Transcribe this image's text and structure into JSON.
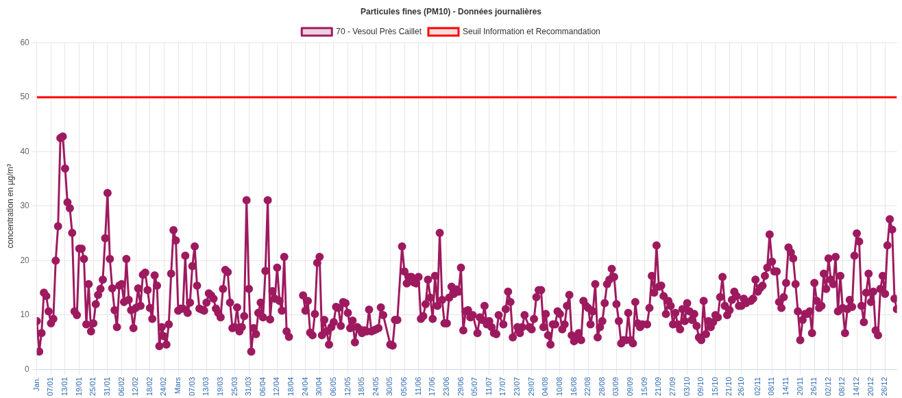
{
  "chart_data": {
    "type": "line",
    "title": "Particules fines (PM10) - Données journalières",
    "ylabel": "concentration en µg/m³",
    "xlim": [
      "--01-01",
      "--12-31"
    ],
    "ylim": [
      0,
      60
    ],
    "yticks": [
      0,
      10,
      20,
      30,
      40,
      50,
      60
    ],
    "xticks": [
      {
        "value": "--01-01",
        "label": "Jan."
      },
      {
        "value": "--01-07",
        "label": "07/01"
      },
      {
        "value": "--01-13",
        "label": "13/01"
      },
      {
        "value": "--01-19",
        "label": "19/01"
      },
      {
        "value": "--01-25",
        "label": "25/01"
      },
      {
        "value": "--01-31",
        "label": "31/01"
      },
      {
        "value": "--02-06",
        "label": "06/02"
      },
      {
        "value": "--02-12",
        "label": "12/02"
      },
      {
        "value": "--02-18",
        "label": "18/02"
      },
      {
        "value": "--02-24",
        "label": "24/02"
      },
      {
        "value": "--03-01",
        "label": "Mars"
      },
      {
        "value": "--03-07",
        "label": "07/03"
      },
      {
        "value": "--03-13",
        "label": "13/03"
      },
      {
        "value": "--03-19",
        "label": "19/03"
      },
      {
        "value": "--03-25",
        "label": "25/03"
      },
      {
        "value": "--03-31",
        "label": "31/03"
      },
      {
        "value": "--04-06",
        "label": "06/04"
      },
      {
        "value": "--04-12",
        "label": "12/04"
      },
      {
        "value": "--04-18",
        "label": "18/04"
      },
      {
        "value": "--04-24",
        "label": "24/04"
      },
      {
        "value": "--04-30",
        "label": "30/04"
      },
      {
        "value": "--05-06",
        "label": "06/05"
      },
      {
        "value": "--05-12",
        "label": "12/05"
      },
      {
        "value": "--05-18",
        "label": "18/05"
      },
      {
        "value": "--05-24",
        "label": "24/05"
      },
      {
        "value": "--05-30",
        "label": "30/05"
      },
      {
        "value": "--06-05",
        "label": "05/06"
      },
      {
        "value": "--06-11",
        "label": "11/06"
      },
      {
        "value": "--06-17",
        "label": "17/06"
      },
      {
        "value": "--06-23",
        "label": "23/06"
      },
      {
        "value": "--06-29",
        "label": "29/06"
      },
      {
        "value": "--07-05",
        "label": "05/07"
      },
      {
        "value": "--07-11",
        "label": "11/07"
      },
      {
        "value": "--07-17",
        "label": "17/07"
      },
      {
        "value": "--07-23",
        "label": "23/07"
      },
      {
        "value": "--07-29",
        "label": "29/07"
      },
      {
        "value": "--08-04",
        "label": "04/08"
      },
      {
        "value": "--08-10",
        "label": "10/08"
      },
      {
        "value": "--08-16",
        "label": "16/08"
      },
      {
        "value": "--08-22",
        "label": "22/08"
      },
      {
        "value": "--08-28",
        "label": "28/08"
      },
      {
        "value": "--09-03",
        "label": "03/09"
      },
      {
        "value": "--09-09",
        "label": "09/09"
      },
      {
        "value": "--09-15",
        "label": "15/09"
      },
      {
        "value": "--09-21",
        "label": "21/09"
      },
      {
        "value": "--09-27",
        "label": "27/09"
      },
      {
        "value": "--10-03",
        "label": "03/10"
      },
      {
        "value": "--10-09",
        "label": "09/10"
      },
      {
        "value": "--10-15",
        "label": "15/10"
      },
      {
        "value": "--10-21",
        "label": "21/10"
      },
      {
        "value": "--10-26",
        "label": "26/10"
      },
      {
        "value": "--11-02",
        "label": "02/11"
      },
      {
        "value": "--11-08",
        "label": "08/11"
      },
      {
        "value": "--11-14",
        "label": "14/11"
      },
      {
        "value": "--11-20",
        "label": "20/11"
      },
      {
        "value": "--11-26",
        "label": "26/11"
      },
      {
        "value": "--12-02",
        "label": "02/12"
      },
      {
        "value": "--12-08",
        "label": "08/12"
      },
      {
        "value": "--12-14",
        "label": "14/12"
      },
      {
        "value": "--12-20",
        "label": "20/12"
      },
      {
        "value": "--12-26",
        "label": "26/12"
      }
    ],
    "grid": true,
    "legend": "top",
    "marker": "circle",
    "line_style": "solid",
    "ref_lines": [
      {
        "axis": "y",
        "value": 50,
        "label": "Seuil Information et Recommandation",
        "color": "#ff0000"
      }
    ],
    "series": [
      {
        "name": "70 - Vesoul Près Caillet",
        "color": "#9e1a5f",
        "x": [
          "--01-01",
          "--01-02",
          "--01-03",
          "--01-04",
          "--01-05",
          "--01-06",
          "--01-07",
          "--01-08",
          "--01-09",
          "--01-10",
          "--01-11",
          "--01-12",
          "--01-13",
          "--01-14",
          "--01-15",
          "--01-16",
          "--01-17",
          "--01-18",
          "--01-19",
          "--01-20",
          "--01-21",
          "--01-22",
          "--01-23",
          "--01-24",
          "--01-25",
          "--01-26",
          "--01-27",
          "--01-28",
          "--01-29",
          "--01-30",
          "--01-31",
          "--02-01",
          "--02-02",
          "--02-03",
          "--02-04",
          "--02-05",
          "--02-06",
          "--02-07",
          "--02-08",
          "--02-09",
          "--02-10",
          "--02-11",
          "--02-12",
          "--02-13",
          "--02-14",
          "--02-15",
          "--02-16",
          "--02-17",
          "--02-18",
          "--02-19",
          "--02-20",
          "--02-21",
          "--02-22",
          "--02-23",
          "--02-24",
          "--02-25",
          "--02-26",
          "--02-27",
          "--02-28",
          "--02-29",
          "--03-01",
          "--03-02",
          "--03-03",
          "--03-04",
          "--03-05",
          "--03-06",
          "--03-07",
          "--03-08",
          "--03-09",
          "--03-10",
          "--03-11",
          "--03-12",
          "--03-13",
          "--03-14",
          "--03-15",
          "--03-16",
          "--03-17",
          "--03-18",
          "--03-19",
          "--03-20",
          "--03-21",
          "--03-22",
          "--03-23",
          "--03-24",
          "--03-25",
          "--03-26",
          "--03-27",
          "--03-28",
          "--03-29",
          "--03-30",
          "--03-31",
          "--04-01",
          "--04-02",
          "--04-03",
          "--04-04",
          "--04-05",
          "--04-06",
          "--04-07",
          "--04-08",
          "--04-09",
          "--04-10",
          "--04-11",
          "--04-12",
          "--04-13",
          "--04-14",
          "--04-15",
          "--04-16",
          "--04-17",
          "--04-18",
          "--04-23",
          "--04-24",
          "--04-25",
          "--04-26",
          "--04-27",
          "--04-28",
          "--04-29",
          "--04-30",
          "--05-01",
          "--05-02",
          "--05-03",
          "--05-04",
          "--05-05",
          "--05-06",
          "--05-07",
          "--05-08",
          "--05-09",
          "--05-10",
          "--05-11",
          "--05-12",
          "--05-13",
          "--05-14",
          "--05-15",
          "--05-16",
          "--05-17",
          "--05-18",
          "--05-19",
          "--05-20",
          "--05-21",
          "--05-22",
          "--05-23",
          "--05-24",
          "--05-25",
          "--05-26",
          "--05-27",
          "--05-30",
          "--05-31",
          "--06-01",
          "--06-02",
          "--06-04",
          "--06-05",
          "--06-06",
          "--06-07",
          "--06-08",
          "--06-09",
          "--06-10",
          "--06-11",
          "--06-12",
          "--06-13",
          "--06-14",
          "--06-15",
          "--06-16",
          "--06-17",
          "--06-18",
          "--06-19",
          "--06-20",
          "--06-21",
          "--06-22",
          "--06-23",
          "--06-24",
          "--06-25",
          "--06-26",
          "--06-27",
          "--06-28",
          "--06-29",
          "--06-30",
          "--07-01",
          "--07-02",
          "--07-03",
          "--07-04",
          "--07-06",
          "--07-07",
          "--07-08",
          "--07-09",
          "--07-10",
          "--07-11",
          "--07-12",
          "--07-13",
          "--07-14",
          "--07-15",
          "--07-17",
          "--07-18",
          "--07-19",
          "--07-20",
          "--07-21",
          "--07-23",
          "--07-24",
          "--07-25",
          "--07-26",
          "--07-28",
          "--07-29",
          "--07-30",
          "--07-31",
          "--08-01",
          "--08-02",
          "--08-03",
          "--08-04",
          "--08-05",
          "--08-06",
          "--08-07",
          "--08-08",
          "--08-09",
          "--08-10",
          "--08-11",
          "--08-12",
          "--08-13",
          "--08-14",
          "--08-15",
          "--08-16",
          "--08-17",
          "--08-18",
          "--08-19",
          "--08-20",
          "--08-21",
          "--08-22",
          "--08-23",
          "--08-24",
          "--08-25",
          "--08-26",
          "--08-27",
          "--08-28",
          "--08-29",
          "--08-30",
          "--08-31",
          "--09-01",
          "--09-02",
          "--09-03",
          "--09-04",
          "--09-05",
          "--09-06",
          "--09-07",
          "--09-08",
          "--09-09",
          "--09-10",
          "--09-11",
          "--09-12",
          "--09-13",
          "--09-14",
          "--09-16",
          "--09-17",
          "--09-18",
          "--09-19",
          "--09-20",
          "--09-21",
          "--09-22",
          "--09-23",
          "--09-24",
          "--09-25",
          "--09-26",
          "--09-27",
          "--09-28",
          "--09-29",
          "--09-30",
          "--10-01",
          "--10-02",
          "--10-03",
          "--10-04",
          "--10-05",
          "--10-06",
          "--10-07",
          "--10-08",
          "--10-09",
          "--10-10",
          "--10-11",
          "--10-12",
          "--10-13",
          "--10-14",
          "--10-15",
          "--10-16",
          "--10-17",
          "--10-18",
          "--10-19",
          "--10-20",
          "--10-21",
          "--10-22",
          "--10-23",
          "--10-24",
          "--10-25",
          "--10-26",
          "--10-27",
          "--10-28",
          "--10-30",
          "--10-31",
          "--11-01",
          "--11-02",
          "--11-03",
          "--11-04",
          "--11-05",
          "--11-06",
          "--11-07",
          "--11-08",
          "--11-09",
          "--11-10",
          "--11-11",
          "--11-12",
          "--11-13",
          "--11-14",
          "--11-15",
          "--11-16",
          "--11-17",
          "--11-18",
          "--11-19",
          "--11-20",
          "--11-21",
          "--11-22",
          "--11-23",
          "--11-24",
          "--11-25",
          "--11-26",
          "--11-27",
          "--11-28",
          "--11-29",
          "--11-30",
          "--12-01",
          "--12-02",
          "--12-03",
          "--12-04",
          "--12-05",
          "--12-06",
          "--12-07",
          "--12-08",
          "--12-09",
          "--12-10",
          "--12-11",
          "--12-12",
          "--12-13",
          "--12-14",
          "--12-15",
          "--12-16",
          "--12-17",
          "--12-18",
          "--12-19",
          "--12-20",
          "--12-21",
          "--12-22",
          "--12-23",
          "--12-24",
          "--12-25",
          "--12-26",
          "--12-27",
          "--12-28",
          "--12-29",
          "--12-30",
          "--12-31"
        ],
        "values": [
          8.9,
          3.3,
          6.7,
          14.1,
          13.5,
          10.7,
          8.5,
          9.3,
          20,
          26.3,
          42.5,
          42.8,
          36.9,
          30.7,
          29.6,
          25.1,
          10.7,
          10,
          22.2,
          22.2,
          20.3,
          8.3,
          15.7,
          7,
          8.5,
          12,
          13.7,
          14.8,
          16.5,
          24.1,
          32.4,
          20.3,
          14.9,
          10.9,
          7.8,
          15.4,
          15.7,
          12.4,
          20.3,
          12.8,
          10.9,
          7.6,
          11.3,
          14.9,
          11.7,
          17.4,
          17.8,
          14.6,
          11.3,
          9.3,
          17.3,
          15.4,
          4.3,
          7.8,
          6.1,
          4.6,
          8.3,
          17.6,
          25.6,
          23.7,
          10.8,
          11.2,
          11.2,
          20.9,
          10.4,
          12.3,
          19,
          22.6,
          15.4,
          11.2,
          11,
          10.8,
          12.3,
          14,
          13.6,
          13,
          11.2,
          10.4,
          9.6,
          14.8,
          18.3,
          17.9,
          12.3,
          7.6,
          7.8,
          11.4,
          7,
          7.8,
          9.8,
          31.1,
          14.8,
          3.3,
          7.6,
          6.5,
          10.4,
          12.3,
          9.6,
          18.1,
          31.1,
          9.2,
          14.4,
          13,
          18.7,
          12.6,
          10.8,
          20.7,
          7,
          6,
          null,
          13.6,
          10.8,
          12.6,
          6.8,
          6.3,
          10.2,
          19.6,
          20.7,
          6.3,
          9.1,
          7,
          4.6,
          7.8,
          8.7,
          11.5,
          11.3,
          8,
          12.4,
          12.2,
          10.4,
          7.6,
          9,
          5,
          7.8,
          7.4,
          6.7,
          7.2,
          7,
          11,
          7,
          7.2,
          7.4,
          7.6,
          11.4,
          10,
          4.6,
          4.4,
          9.1,
          9.1,
          22.6,
          18,
          15.8,
          17,
          17,
          16,
          15.8,
          17,
          9.3,
          9.8,
          12,
          16.5,
          13.2,
          9.3,
          17.2,
          11.7,
          25.1,
          12.8,
          8.5,
          8.5,
          13.2,
          15.2,
          13.9,
          14.7,
          14.3,
          18.7,
          7.2,
          10.7,
          10.9,
          9.6,
          10,
          6.7,
          9.6,
          9.1,
          11.7,
          8.3,
          8.9,
          7.8,
          6.7,
          6.5,
          10,
          8.3,
          11.1,
          14.3,
          12.4,
          5.9,
          7.8,
          6.7,
          7.8,
          10,
          7.8,
          7.4,
          9.3,
          13.3,
          14.6,
          14.6,
          7.8,
          10.2,
          6.3,
          4.6,
          8.3,
          8.3,
          10.7,
          10.2,
          7.4,
          8.3,
          11.7,
          13.7,
          6.3,
          5.2,
          5.9,
          6.7,
          5.4,
          12.6,
          11.7,
          11.3,
          8.3,
          10.7,
          15.7,
          5.9,
          7.8,
          8.9,
          12.2,
          15.7,
          16.5,
          18.5,
          17,
          12,
          8.9,
          4.8,
          5.4,
          5.4,
          10.4,
          5.4,
          4.8,
          12.4,
          8.5,
          7.8,
          8.3,
          8.3,
          11.3,
          17.2,
          14.1,
          22.8,
          15.2,
          15.4,
          13.5,
          10.2,
          12.6,
          11.7,
          8.3,
          10.4,
          8.3,
          7.4,
          11.1,
          8.9,
          12.2,
          10.7,
          9.1,
          10.2,
          8,
          5.9,
          5.4,
          12.6,
          6.5,
          8.9,
          7.8,
          8.7,
          10,
          9.6,
          13.3,
          17,
          11.7,
          10,
          10.9,
          12.8,
          14.3,
          13.5,
          11.7,
          11.7,
          13,
          12.2,
          12.6,
          13,
          16.5,
          14.3,
          15,
          15.4,
          17.2,
          18.7,
          24.8,
          19.8,
          18,
          18,
          12.4,
          11.3,
          13.3,
          15.9,
          22.4,
          21.5,
          20.4,
          15.7,
          10.7,
          5.4,
          9.1,
          10.2,
          10.2,
          10.7,
          6.7,
          15.9,
          12.6,
          11.3,
          11.7,
          17.6,
          14.8,
          20.4,
          16.5,
          15.7,
          20.7,
          10.7,
          17.2,
          11.3,
          6.7,
          11.1,
          12.8,
          11.5,
          20.9,
          25,
          23.5,
          11.7,
          8.7,
          14.1,
          17.6,
          12.4,
          14.3,
          7.2,
          6.3,
          14.8,
          17.2,
          13.9,
          22.8,
          27.6,
          25.7,
          13,
          11.1
        ]
      }
    ]
  }
}
